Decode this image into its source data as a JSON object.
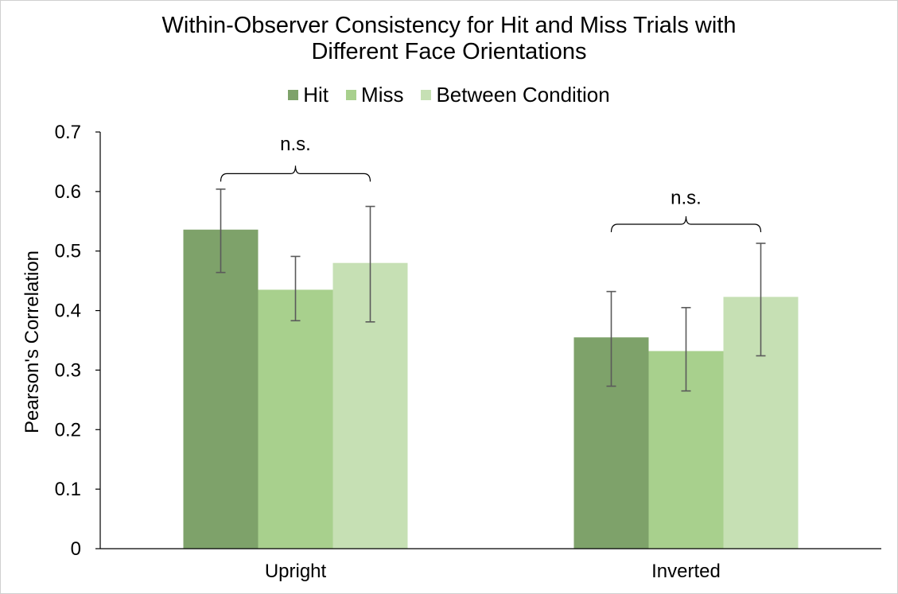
{
  "chart_data": {
    "type": "bar",
    "title": "Within-Observer Consistency for Hit and Miss Trials with Different Face Orientations",
    "title_lines": [
      "Within-Observer Consistency for Hit and Miss Trials with",
      "Different Face Orientations"
    ],
    "xlabel": "",
    "ylabel": "Pearson's Correlation",
    "ylim": [
      0,
      0.7
    ],
    "yticks": [
      "0",
      "0.1",
      "0.2",
      "0.3",
      "0.4",
      "0.5",
      "0.6",
      "0.7"
    ],
    "categories": [
      "Upright",
      "Inverted"
    ],
    "series": [
      {
        "name": "Hit",
        "color": "#7ea26a",
        "values": [
          0.536,
          0.355
        ],
        "err_low": [
          0.464,
          0.273
        ],
        "err_high": [
          0.604,
          0.432
        ]
      },
      {
        "name": "Miss",
        "color": "#a8d08d",
        "values": [
          0.435,
          0.332
        ],
        "err_low": [
          0.383,
          0.265
        ],
        "err_high": [
          0.491,
          0.405
        ]
      },
      {
        "name": "Between Condition",
        "color": "#c6e0b4",
        "values": [
          0.48,
          0.423
        ],
        "err_low": [
          0.381,
          0.324
        ],
        "err_high": [
          0.575,
          0.513
        ]
      }
    ],
    "annotations": [
      {
        "category": "Upright",
        "text": "n.s.",
        "bracket_y": 0.63,
        "label_y": 0.68
      },
      {
        "category": "Inverted",
        "text": "n.s.",
        "bracket_y": 0.545,
        "label_y": 0.59
      }
    ],
    "legend_position": "top-center",
    "grid": false
  }
}
